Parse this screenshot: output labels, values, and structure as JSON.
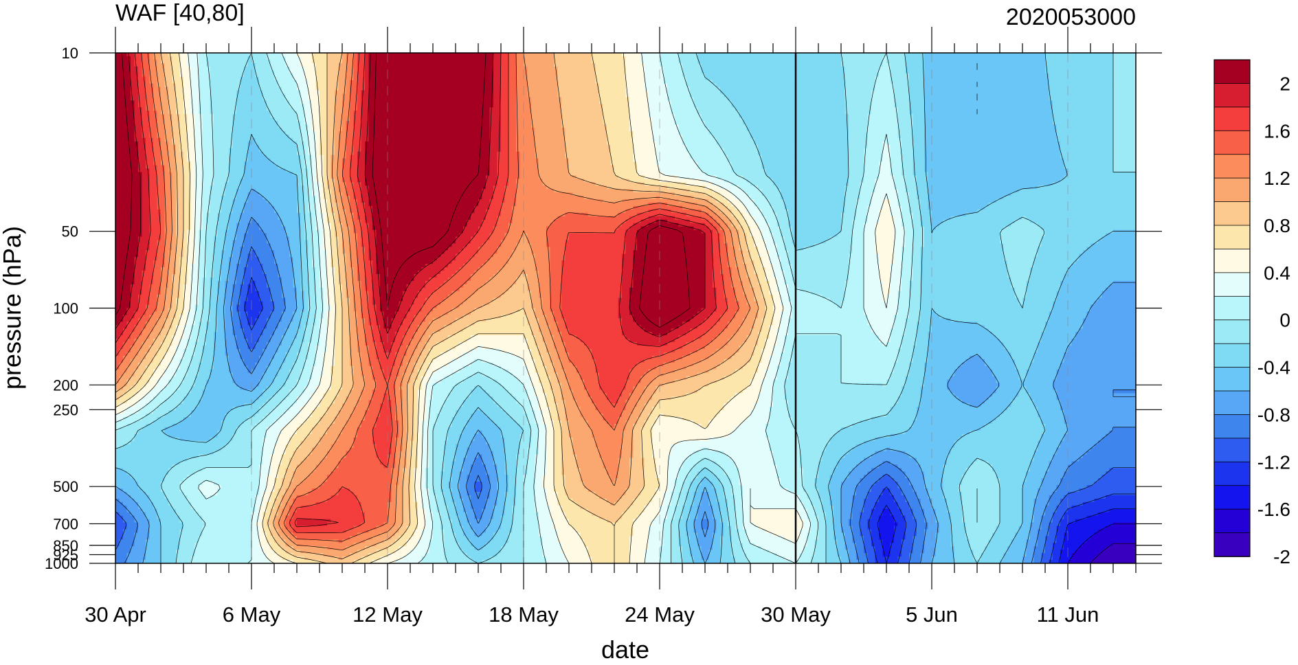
{
  "chart_data": {
    "type": "heatmap",
    "title_left": "WAF [40,80]",
    "title_right": "2020053000",
    "xlabel": "date",
    "ylabel": "pressure (hPa)",
    "x_ticks": [
      {
        "label": "30 Apr",
        "day": 0
      },
      {
        "label": "6 May",
        "day": 6
      },
      {
        "label": "12 May",
        "day": 12
      },
      {
        "label": "18 May",
        "day": 18
      },
      {
        "label": "24 May",
        "day": 24
      },
      {
        "label": "30 May",
        "day": 30
      },
      {
        "label": "5 Jun",
        "day": 36
      },
      {
        "label": "11 Jun",
        "day": 42
      }
    ],
    "x_range_days": [
      0,
      45
    ],
    "y_ticks": [
      10,
      50,
      100,
      200,
      250,
      500,
      700,
      850,
      925,
      1000
    ],
    "y_tick_labels": [
      "10",
      "50",
      "100",
      "200",
      "250",
      "500",
      "700",
      "850",
      "925",
      "1000"
    ],
    "y_scale": "log",
    "y_range": [
      10,
      1000
    ],
    "reference_date_line": "30 May",
    "colorbar": {
      "levels": [
        2.2,
        2,
        1.8,
        1.6,
        1.4,
        1.2,
        1.0,
        0.8,
        0.6,
        0.4,
        0.2,
        0,
        -0.2,
        -0.4,
        -0.6,
        -0.8,
        -1.0,
        -1.2,
        -1.4,
        -1.6,
        -1.8,
        -2,
        -2.2
      ],
      "tick_labels": [
        "2",
        "1.6",
        "1.2",
        "0.8",
        "0.4",
        "0",
        "-0.4",
        "-0.8",
        "-1.2",
        "-1.6",
        "-2"
      ],
      "colors": [
        "#a50021",
        "#d61e30",
        "#f43d3d",
        "#f86048",
        "#fd8c5c",
        "#fba870",
        "#fcc98e",
        "#fde6ab",
        "#fffae3",
        "#e3fdfd",
        "#b8f6fb",
        "#9ceaf6",
        "#7fdaf4",
        "#6ac6f7",
        "#58a6f6",
        "#3f85ee",
        "#2e5cf0",
        "#1c34ee",
        "#1414ef",
        "#2400d6",
        "#3a00c0"
      ]
    },
    "field_days": [
      0,
      2,
      4,
      6,
      8,
      10,
      12,
      14,
      16,
      18,
      20,
      22,
      24,
      26,
      28,
      30,
      32,
      34,
      36,
      38,
      40,
      42,
      44,
      45
    ],
    "field_levels_hpa": [
      10,
      30,
      50,
      100,
      200,
      300,
      500,
      700,
      1000
    ],
    "field_values": [
      [
        2.4,
        1.0,
        0.0,
        -0.2,
        0.4,
        1.0,
        2.6,
        2.6,
        2.4,
        1.2,
        0.9,
        0.7,
        0.2,
        -0.3,
        -0.4,
        -0.4,
        -0.2,
        0.0,
        -0.5,
        -0.6,
        -0.5,
        -0.3,
        -0.2,
        -0.2
      ],
      [
        2.6,
        1.5,
        0.1,
        -0.5,
        -0.4,
        1.4,
        2.6,
        2.5,
        2.2,
        1.3,
        1.0,
        0.8,
        0.4,
        0.2,
        -0.1,
        -0.4,
        -0.3,
        0.3,
        -0.5,
        -0.6,
        -0.5,
        -0.4,
        -0.2,
        -0.2
      ],
      [
        2.5,
        1.6,
        0.0,
        -0.9,
        -0.5,
        1.0,
        2.4,
        2.4,
        1.8,
        1.2,
        1.6,
        1.6,
        2.4,
        2.0,
        0.6,
        -0.3,
        -0.2,
        0.6,
        -0.4,
        -0.3,
        -0.1,
        -0.3,
        -0.4,
        -0.4
      ],
      [
        2.3,
        1.3,
        -0.1,
        -1.4,
        -0.6,
        0.8,
        2.2,
        1.4,
        1.0,
        0.8,
        1.8,
        1.7,
        2.6,
        2.0,
        1.2,
        0.1,
        0.0,
        0.4,
        -0.4,
        -0.3,
        -0.2,
        -0.5,
        -0.7,
        -0.7
      ],
      [
        1.2,
        0.3,
        -0.4,
        -0.7,
        0.0,
        0.8,
        1.6,
        0.2,
        -0.2,
        0.2,
        1.2,
        1.8,
        1.0,
        0.8,
        0.6,
        -0.2,
        0.0,
        0.0,
        -0.5,
        -0.8,
        -0.4,
        -0.7,
        -0.8,
        -0.8
      ],
      [
        0.0,
        -0.4,
        -0.6,
        0.0,
        0.6,
        1.2,
        1.8,
        0.0,
        -0.6,
        -0.2,
        1.0,
        1.4,
        0.4,
        0.6,
        0.3,
        0.0,
        -0.2,
        -0.3,
        -0.5,
        -0.4,
        -0.2,
        -0.6,
        -0.8,
        -0.8
      ],
      [
        -0.6,
        -0.2,
        0.3,
        0.0,
        1.2,
        1.6,
        1.5,
        0.0,
        -1.1,
        0.0,
        0.9,
        1.2,
        0.6,
        -0.6,
        0.4,
        0.1,
        -0.6,
        -1.2,
        -0.5,
        0.0,
        -0.4,
        -0.9,
        -1.1,
        -1.1
      ],
      [
        -1.2,
        -0.4,
        0.0,
        0.2,
        1.9,
        1.8,
        1.4,
        0.2,
        -0.8,
        0.0,
        0.6,
        0.8,
        0.3,
        -0.9,
        0.4,
        0.6,
        -0.6,
        -1.6,
        -0.7,
        0.0,
        -0.4,
        -1.4,
        -1.6,
        -1.6
      ],
      [
        -0.9,
        -0.4,
        0.2,
        0.2,
        0.6,
        0.9,
        0.4,
        0.1,
        -0.2,
        0.0,
        0.4,
        0.8,
        0.2,
        -0.6,
        0.0,
        0.2,
        -0.4,
        -1.4,
        -0.6,
        -0.2,
        -0.6,
        -1.6,
        -2.0,
        -2.0
      ]
    ]
  }
}
